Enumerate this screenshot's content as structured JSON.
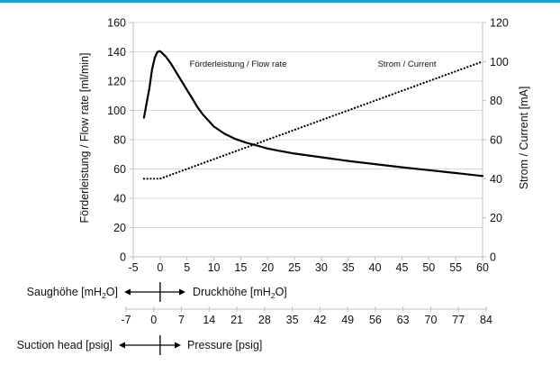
{
  "chart_data": {
    "type": "line",
    "grid": {
      "horizontal": true,
      "vertical": false
    },
    "x_axis": {
      "range": [
        -5,
        60
      ],
      "ticks": [
        -5,
        0,
        5,
        10,
        15,
        20,
        25,
        30,
        35,
        40,
        45,
        50,
        55,
        60
      ],
      "tick_labels": [
        "-5",
        "0",
        "5",
        "10",
        "15",
        "20",
        "25",
        "30",
        "35",
        "40",
        "45",
        "50",
        "55",
        "60"
      ]
    },
    "y_left": {
      "label": "Förderleistung / Flow rate [ml/min]",
      "range": [
        0,
        160
      ],
      "ticks": [
        0,
        20,
        40,
        60,
        80,
        100,
        120,
        140,
        160
      ],
      "tick_labels": [
        "0",
        "20",
        "40",
        "60",
        "80",
        "100",
        "120",
        "140",
        "160"
      ]
    },
    "y_right": {
      "label": "Strom / Current [mA]",
      "range": [
        0,
        120
      ],
      "ticks": [
        0,
        20,
        40,
        60,
        80,
        100,
        120
      ],
      "tick_labels": [
        "0",
        "20",
        "40",
        "60",
        "80",
        "100",
        "120"
      ]
    },
    "series": [
      {
        "name": "Förderleistung / Flow rate",
        "axis": "left",
        "style": "solid",
        "color": "#000000",
        "points": [
          [
            -3,
            95
          ],
          [
            -2,
            115
          ],
          [
            -1.5,
            128
          ],
          [
            -1,
            136
          ],
          [
            -0.5,
            140
          ],
          [
            0,
            140.5
          ],
          [
            1,
            137
          ],
          [
            2,
            132
          ],
          [
            3,
            126
          ],
          [
            4,
            120
          ],
          [
            5,
            114
          ],
          [
            6,
            108
          ],
          [
            7,
            102
          ],
          [
            8,
            97
          ],
          [
            9,
            93
          ],
          [
            10,
            89
          ],
          [
            12,
            84
          ],
          [
            14,
            80.5
          ],
          [
            16,
            78
          ],
          [
            18,
            76
          ],
          [
            20,
            74
          ],
          [
            22,
            72.5
          ],
          [
            25,
            70.5
          ],
          [
            30,
            68
          ],
          [
            35,
            65.5
          ],
          [
            40,
            63.3
          ],
          [
            45,
            61.2
          ],
          [
            50,
            59.2
          ],
          [
            55,
            57.2
          ],
          [
            60,
            55.2
          ]
        ]
      },
      {
        "name": "Strom / Current",
        "axis": "right",
        "style": "dotted",
        "color": "#000000",
        "points": [
          [
            -3,
            40
          ],
          [
            0,
            40
          ],
          [
            60,
            100
          ]
        ]
      }
    ],
    "annotations": [
      {
        "text": "Förderleistung / Flow rate",
        "x": 5.5,
        "y_left": 130
      },
      {
        "text": "Strom / Current",
        "x": 40.5,
        "y_left": 130
      }
    ],
    "secondary_scales": [
      {
        "label_left_main": "Saughöhe [mH",
        "label_left_sub": "2",
        "label_left_tail": "O]",
        "label_right_main": "Druckhöhe [mH",
        "label_right_sub": "2",
        "label_right_tail": "O]"
      },
      {
        "range": [
          -7,
          84
        ],
        "ticks": [
          -7,
          0,
          7,
          14,
          21,
          28,
          35,
          42,
          49,
          56,
          63,
          70,
          77,
          84
        ],
        "tick_labels": [
          "-7",
          "0",
          "7",
          "14",
          "21",
          "28",
          "35",
          "42",
          "49",
          "56",
          "63",
          "70",
          "77",
          "84"
        ],
        "label_left": "Suction head [psig]",
        "label_right": "Pressure [psig]"
      }
    ]
  }
}
